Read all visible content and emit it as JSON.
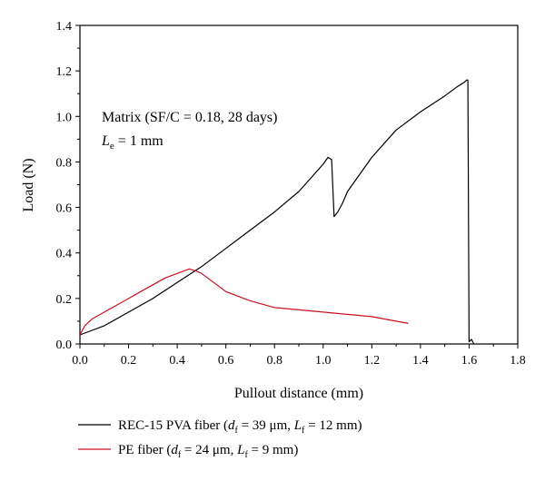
{
  "chart_data": {
    "type": "line",
    "xlabel": "Pullout distance (mm)",
    "ylabel": "Load (N)",
    "xlim": [
      0.0,
      1.8
    ],
    "ylim": [
      0.0,
      1.4
    ],
    "xticks": [
      "0.0",
      "0.2",
      "0.4",
      "0.6",
      "0.8",
      "1.0",
      "1.2",
      "1.4",
      "1.6",
      "1.8"
    ],
    "yticks": [
      "0.0",
      "0.2",
      "0.4",
      "0.6",
      "0.8",
      "1.0",
      "1.2",
      "1.4"
    ],
    "grid": false,
    "legend_position": "bottom",
    "annotations": {
      "line1": "Matrix (SF/C = 0.18, 28 days)",
      "line2_main": "L",
      "line2_sub": "e",
      "line2_rest": " = 1 mm"
    },
    "series": [
      {
        "name": "REC-15 PVA fiber",
        "legend": {
          "prefix": "REC-15 PVA fiber (",
          "d": "d",
          "d_sub": "f",
          "d_val": " = 39 μm, ",
          "L": "L",
          "L_sub": "f",
          "L_val": " = 12 mm)"
        },
        "color": "#000000",
        "x": [
          0.0,
          0.05,
          0.1,
          0.2,
          0.3,
          0.4,
          0.5,
          0.6,
          0.7,
          0.8,
          0.9,
          0.95,
          1.0,
          1.02,
          1.035,
          1.045,
          1.06,
          1.08,
          1.1,
          1.2,
          1.3,
          1.4,
          1.5,
          1.55,
          1.58,
          1.59,
          1.595,
          1.6,
          1.61,
          1.62
        ],
        "y": [
          0.04,
          0.06,
          0.08,
          0.14,
          0.2,
          0.27,
          0.34,
          0.42,
          0.5,
          0.58,
          0.67,
          0.73,
          0.79,
          0.82,
          0.81,
          0.56,
          0.58,
          0.62,
          0.67,
          0.82,
          0.94,
          1.02,
          1.09,
          1.13,
          1.15,
          1.16,
          1.16,
          0.01,
          0.02,
          0.0
        ]
      },
      {
        "name": "PE fiber",
        "legend": {
          "prefix": "PE fiber (",
          "d": "d",
          "d_sub": "f",
          "d_val": " = 24 μm, ",
          "L": "L",
          "L_sub": "f",
          "L_val": " = 9 mm)"
        },
        "color": "#cc1020",
        "x": [
          0.0,
          0.02,
          0.05,
          0.1,
          0.15,
          0.2,
          0.25,
          0.3,
          0.35,
          0.4,
          0.45,
          0.48,
          0.5,
          0.55,
          0.6,
          0.65,
          0.7,
          0.8,
          0.9,
          1.0,
          1.1,
          1.2,
          1.3,
          1.35
        ],
        "y": [
          0.04,
          0.08,
          0.11,
          0.14,
          0.17,
          0.2,
          0.23,
          0.26,
          0.29,
          0.31,
          0.33,
          0.32,
          0.31,
          0.27,
          0.23,
          0.21,
          0.19,
          0.16,
          0.15,
          0.14,
          0.13,
          0.12,
          0.1,
          0.09
        ]
      }
    ]
  }
}
